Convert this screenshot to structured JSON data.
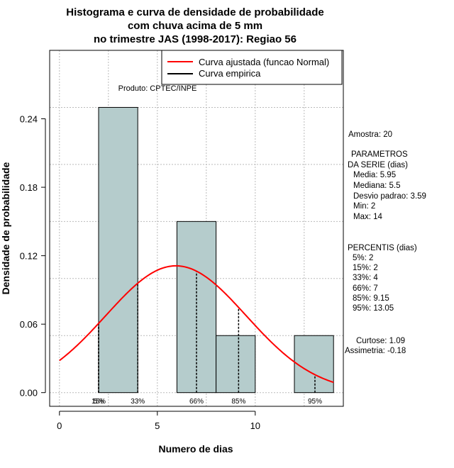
{
  "chart_data": {
    "type": "bar",
    "title_lines": [
      "Histograma e curva de densidade de probabilidade",
      "com chuva acima de 5 mm",
      "no trimestre JAS (1998-2017): Regiao 56"
    ],
    "xlabel": "Numero de dias",
    "ylabel": "Densidade de probabilidade",
    "credit": "Produto: CPTEC/INPE",
    "xlim": [
      -0.5,
      14.5
    ],
    "ylim": [
      -0.012,
      0.3
    ],
    "x_ticks": [
      0,
      5,
      10
    ],
    "y_ticks": [
      0.0,
      0.06,
      0.12,
      0.18,
      0.24
    ],
    "y_tick_labels": [
      "0.00",
      "0.06",
      "0.12",
      "0.18",
      "0.24"
    ],
    "grid": true,
    "bins": [
      {
        "start": 2,
        "end": 4,
        "density": 0.25
      },
      {
        "start": 4,
        "end": 6,
        "density": 0.0
      },
      {
        "start": 6,
        "end": 8,
        "density": 0.15
      },
      {
        "start": 8,
        "end": 10,
        "density": 0.05
      },
      {
        "start": 10,
        "end": 12,
        "density": 0.0
      },
      {
        "start": 12,
        "end": 14,
        "density": 0.05
      }
    ],
    "bar_color": "#b5cccc",
    "normal_curve": {
      "mean": 5.95,
      "sd": 3.59,
      "x_range": [
        0,
        14
      ],
      "color": "#ff0000"
    },
    "percentile_lines": [
      {
        "label": "5%",
        "x": 2
      },
      {
        "label": "15%",
        "x": 2
      },
      {
        "label": "33%",
        "x": 4
      },
      {
        "label": "66%",
        "x": 7
      },
      {
        "label": "85%",
        "x": 9.15
      },
      {
        "label": "95%",
        "x": 13.05
      }
    ],
    "legend": {
      "position": "top-right",
      "entries": [
        {
          "label": "Curva ajustada (funcao Normal)",
          "color": "#ff0000"
        },
        {
          "label": "Curva empirica",
          "color": "#000000"
        }
      ]
    }
  },
  "side_panel": {
    "sample": "Amostra: 20",
    "params_title_1": "PARAMETROS",
    "params_title_2": "DA SERIE (dias)",
    "params": [
      "Media: 5.95",
      "Mediana: 5.5",
      "Desvio padrao: 3.59",
      "Min: 2",
      "Max: 14"
    ],
    "percentis_title": "PERCENTIS (dias)",
    "percentis": [
      "5%: 2",
      "15%: 2",
      "33%: 4",
      "66%: 7",
      "85%: 9.15",
      "95%: 13.05"
    ],
    "curtose": "Curtose: 1.09",
    "assimetria": "Assimetria: -0.18"
  }
}
